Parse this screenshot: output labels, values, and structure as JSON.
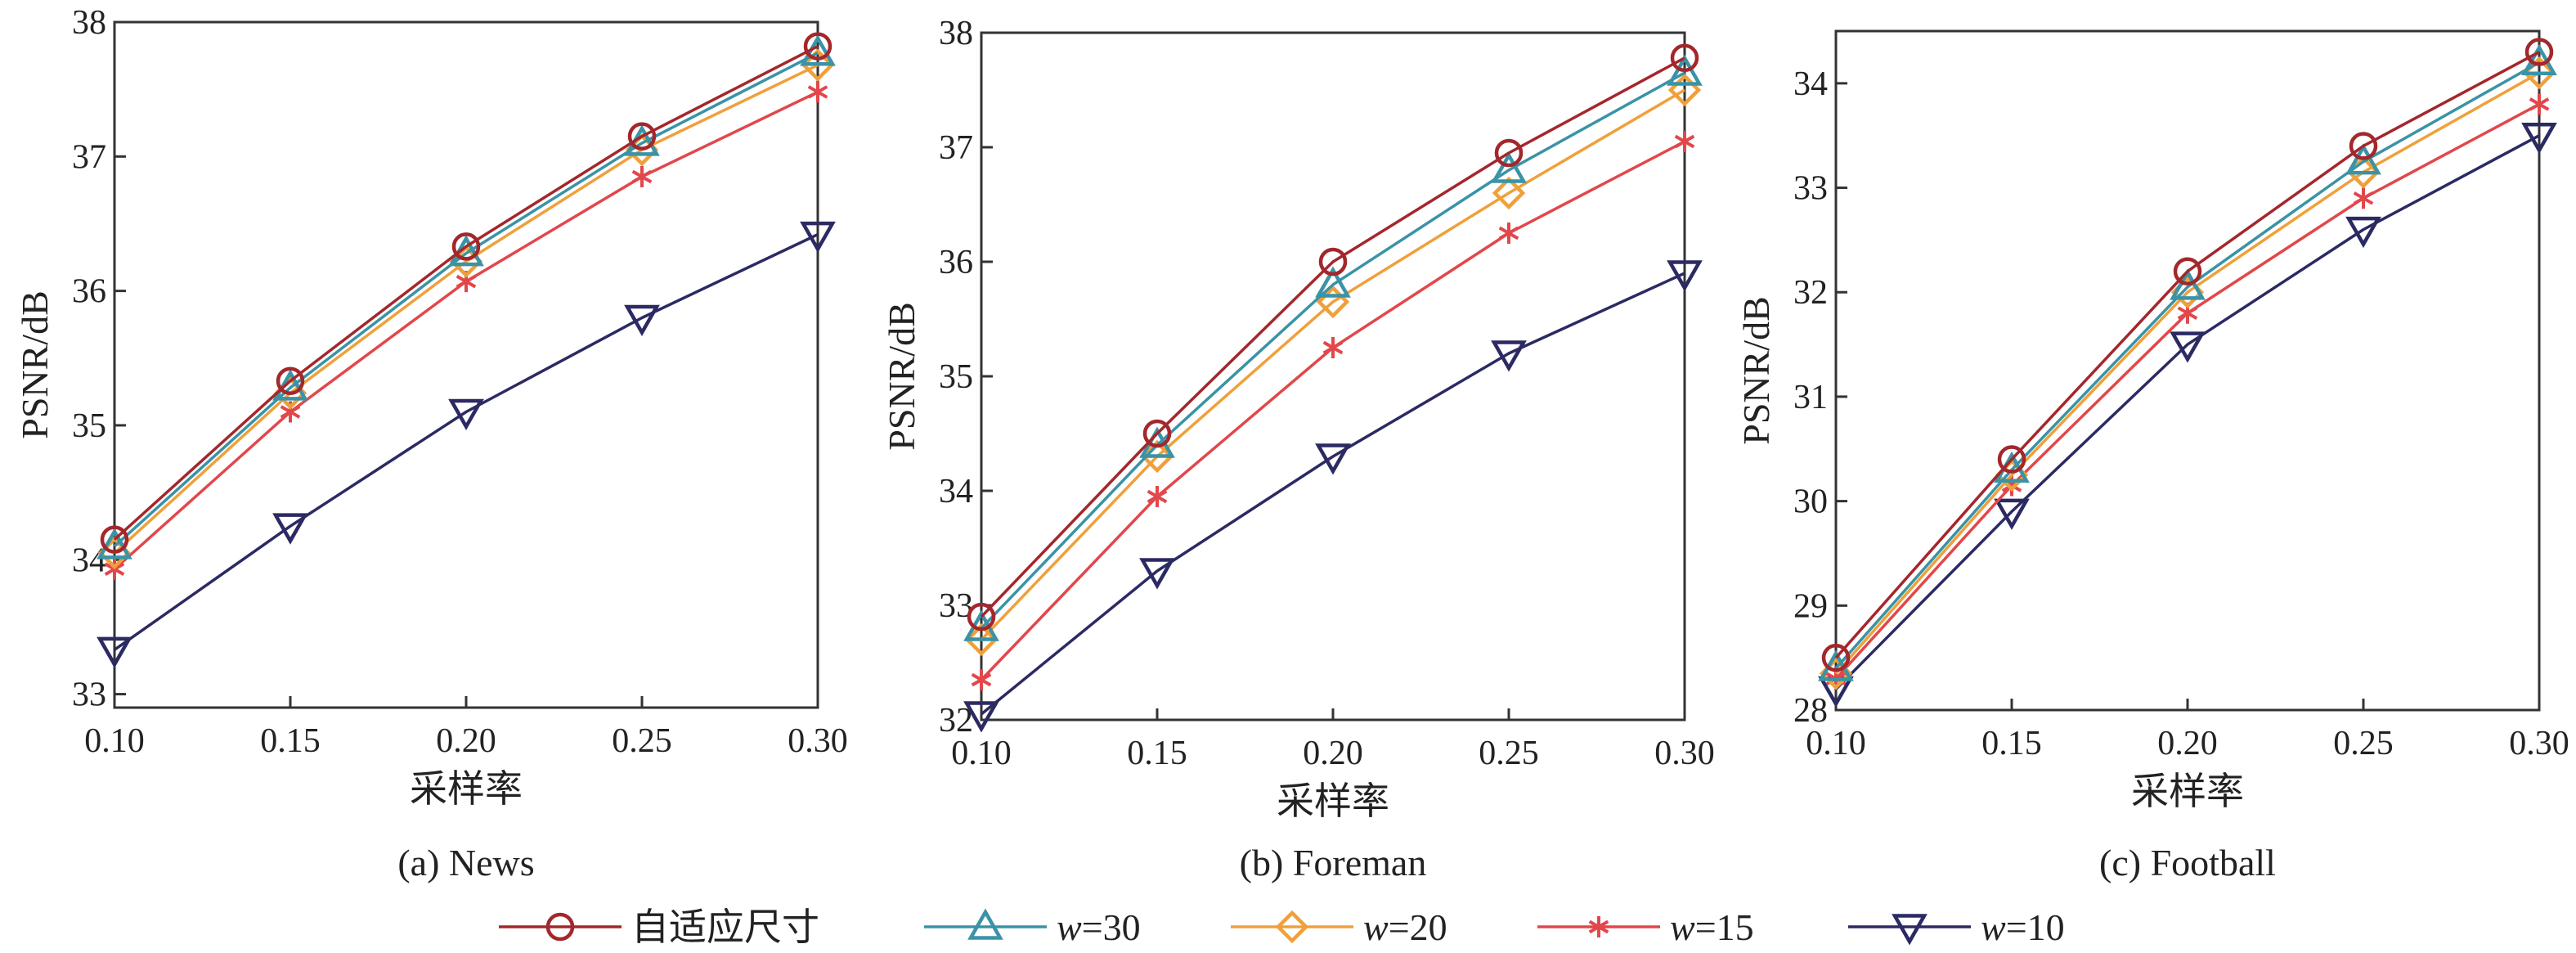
{
  "chart_data": [
    {
      "type": "line",
      "caption": "(a) News",
      "xlabel": "采样率",
      "ylabel": "PSNR/dB",
      "x": [
        0.1,
        0.15,
        0.2,
        0.25,
        0.3
      ],
      "x_tick_labels": [
        "0.10",
        "0.15",
        "0.20",
        "0.25",
        "0.30"
      ],
      "xlim": [
        0.1,
        0.3
      ],
      "ylim": [
        32.9,
        38.0
      ],
      "y_ticks": [
        33,
        34,
        35,
        36,
        37,
        38
      ],
      "y_tick_labels": [
        "33",
        "34",
        "35",
        "36",
        "37",
        "38"
      ],
      "series": [
        {
          "name": "自适应尺寸",
          "values": [
            34.15,
            35.33,
            36.33,
            37.15,
            37.82
          ]
        },
        {
          "name": "w=30",
          "values": [
            34.1,
            35.28,
            36.28,
            37.1,
            37.77
          ]
        },
        {
          "name": "w=20",
          "values": [
            34.05,
            35.24,
            36.22,
            37.05,
            37.68
          ]
        },
        {
          "name": "w=15",
          "values": [
            33.93,
            35.1,
            36.07,
            36.85,
            37.48
          ]
        },
        {
          "name": "w=10",
          "values": [
            33.33,
            34.25,
            35.1,
            35.8,
            36.42
          ]
        }
      ]
    },
    {
      "type": "line",
      "caption": "(b) Foreman",
      "xlabel": "采样率",
      "ylabel": "PSNR/dB",
      "x": [
        0.1,
        0.15,
        0.2,
        0.25,
        0.3
      ],
      "x_tick_labels": [
        "0.10",
        "0.15",
        "0.20",
        "0.25",
        "0.30"
      ],
      "xlim": [
        0.1,
        0.3
      ],
      "ylim": [
        32.0,
        38.0
      ],
      "y_ticks": [
        32,
        33,
        34,
        35,
        36,
        37,
        38
      ],
      "y_tick_labels": [
        "32",
        "33",
        "34",
        "35",
        "36",
        "37",
        "38"
      ],
      "series": [
        {
          "name": "自适应尺寸",
          "values": [
            32.9,
            34.5,
            36.0,
            36.95,
            37.78
          ]
        },
        {
          "name": "w=30",
          "values": [
            32.8,
            34.4,
            35.8,
            36.8,
            37.65
          ]
        },
        {
          "name": "w=20",
          "values": [
            32.7,
            34.3,
            35.65,
            36.6,
            37.5
          ]
        },
        {
          "name": "w=15",
          "values": [
            32.35,
            33.95,
            35.25,
            36.25,
            37.05
          ]
        },
        {
          "name": "w=10",
          "values": [
            32.05,
            33.3,
            34.3,
            35.2,
            35.9
          ]
        }
      ]
    },
    {
      "type": "line",
      "caption": "(c) Football",
      "xlabel": "采样率",
      "ylabel": "PSNR/dB",
      "x": [
        0.1,
        0.15,
        0.2,
        0.25,
        0.3
      ],
      "x_tick_labels": [
        "0.10",
        "0.15",
        "0.20",
        "0.25",
        "0.30"
      ],
      "xlim": [
        0.1,
        0.3
      ],
      "ylim": [
        28.0,
        34.5
      ],
      "y_ticks": [
        28,
        29,
        30,
        31,
        32,
        33,
        34
      ],
      "y_tick_labels": [
        "28",
        "29",
        "30",
        "31",
        "32",
        "33",
        "34"
      ],
      "series": [
        {
          "name": "自适应尺寸",
          "values": [
            28.5,
            30.4,
            32.2,
            33.4,
            34.3
          ]
        },
        {
          "name": "w=30",
          "values": [
            28.4,
            30.3,
            32.05,
            33.25,
            34.2
          ]
        },
        {
          "name": "w=20",
          "values": [
            28.35,
            30.25,
            32.0,
            33.15,
            34.1
          ]
        },
        {
          "name": "w=15",
          "values": [
            28.3,
            30.15,
            31.8,
            32.9,
            33.8
          ]
        },
        {
          "name": "w=10",
          "values": [
            28.2,
            29.9,
            31.5,
            32.6,
            33.5
          ]
        }
      ]
    }
  ],
  "legend": {
    "placement": "bottom",
    "items": [
      {
        "prefix": "",
        "label": "自适应尺寸",
        "marker": "circle",
        "color": "#a3272c"
      },
      {
        "prefix": "w",
        "label": "=30",
        "marker": "triangle-up",
        "color": "#3a93a6"
      },
      {
        "prefix": "w",
        "label": "=20",
        "marker": "diamond",
        "color": "#f0a03a"
      },
      {
        "prefix": "w",
        "label": "=15",
        "marker": "asterisk",
        "color": "#e2474b"
      },
      {
        "prefix": "w",
        "label": "=10",
        "marker": "triangle-down",
        "color": "#2b2a63"
      }
    ]
  }
}
